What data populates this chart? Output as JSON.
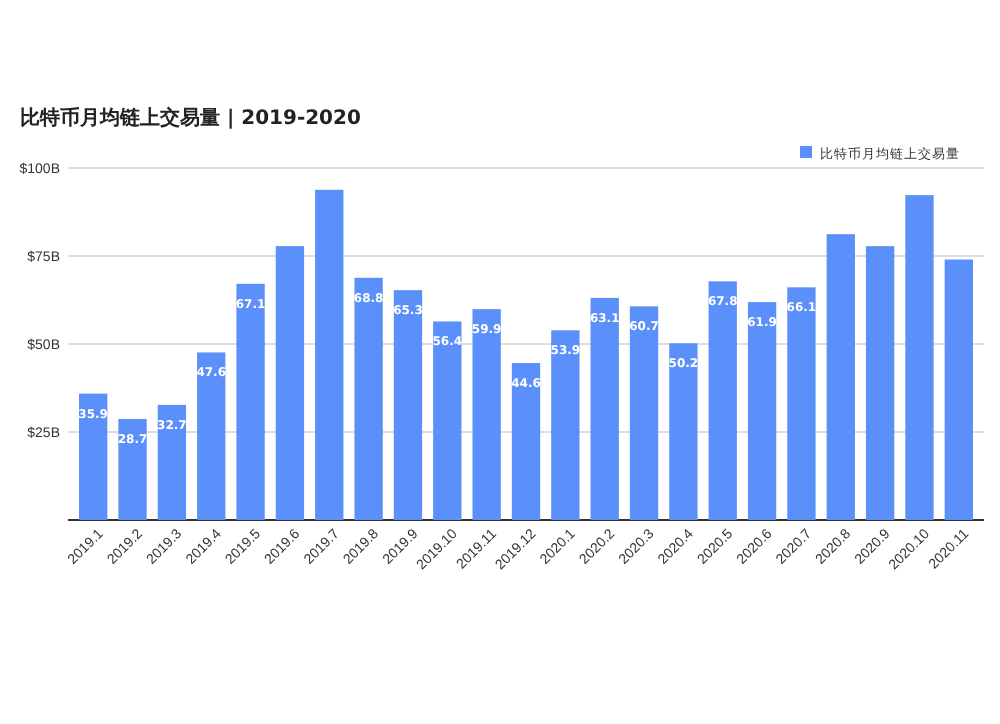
{
  "chart_data": {
    "type": "bar",
    "title": "比特币月均链上交易量 | 2019-2020",
    "categories": [
      "2019.1",
      "2019.2",
      "2019.3",
      "2019.4",
      "2019.5",
      "2019.6",
      "2019.7",
      "2019.8",
      "2019.9",
      "2019.10",
      "2019.11",
      "2019.12",
      "2020.1",
      "2020.2",
      "2020.3",
      "2020.4",
      "2020.5",
      "2020.6",
      "2020.7",
      "2020.8",
      "2020.9",
      "2020.10",
      "2020.11"
    ],
    "series": [
      {
        "name": "比特币月均链上交易量",
        "color": "#5b8ff9",
        "values": [
          35.9,
          28.7,
          32.7,
          47.6,
          67.1,
          77.8,
          93.8,
          68.8,
          65.3,
          56.4,
          59.9,
          44.6,
          53.9,
          63.1,
          60.7,
          50.2,
          67.8,
          61.9,
          66.1,
          81.2,
          77.8,
          92.3,
          74.0
        ],
        "value_labels": [
          "35.9",
          "28.7",
          "32.7",
          "47.6",
          "67.1",
          null,
          null,
          "68.8",
          "65.3",
          "56.4",
          "59.9",
          "44.6",
          "53.9",
          "63.1",
          "60.7",
          "50.2",
          "67.8",
          "61.9",
          "66.1",
          null,
          null,
          null,
          null
        ]
      }
    ],
    "ylim": [
      0,
      100
    ],
    "yticks": [
      {
        "value": 25,
        "label": "$25B"
      },
      {
        "value": 50,
        "label": "$50B"
      },
      {
        "value": 75,
        "label": "$75B"
      },
      {
        "value": 100,
        "label": "$100B"
      }
    ],
    "grid": "y",
    "legend": "top right"
  }
}
